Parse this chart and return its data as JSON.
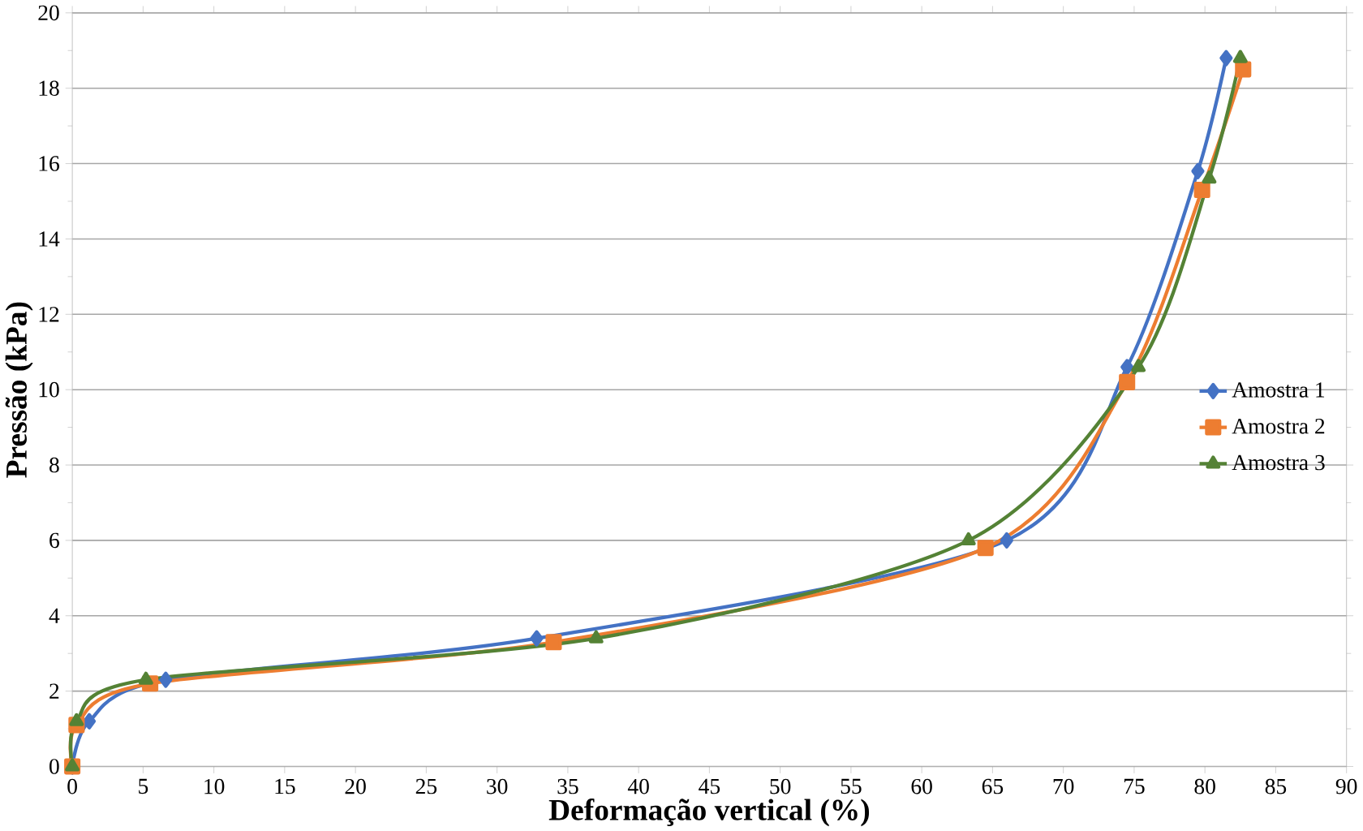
{
  "chart_data": {
    "type": "line",
    "xlabel": "Deformação vertical (%)",
    "ylabel": "Pressão (kPa)",
    "xlim": [
      0,
      90
    ],
    "ylim": [
      0,
      20
    ],
    "xticks": [
      0,
      5,
      10,
      15,
      20,
      25,
      30,
      35,
      40,
      45,
      50,
      55,
      60,
      65,
      70,
      75,
      80,
      85,
      90
    ],
    "yticks": [
      0,
      2,
      4,
      6,
      8,
      10,
      12,
      14,
      16,
      18,
      20
    ],
    "grid": "y",
    "legend": "right",
    "series": [
      {
        "name": "Amostra 1",
        "color": "#4472c4",
        "marker": "diamond",
        "x": [
          0,
          1.2,
          6.6,
          32.8,
          66,
          74.5,
          79.5,
          81.5
        ],
        "values": [
          0,
          1.2,
          2.3,
          3.4,
          6.0,
          10.6,
          15.8,
          18.8
        ]
      },
      {
        "name": "Amostra 2",
        "color": "#ed7d31",
        "marker": "square",
        "x": [
          0,
          0.3,
          5.5,
          34,
          64.5,
          74.5,
          79.8,
          82.7
        ],
        "values": [
          0,
          1.1,
          2.2,
          3.3,
          5.8,
          10.2,
          15.3,
          18.5
        ]
      },
      {
        "name": "Amostra 3",
        "color": "#548235",
        "marker": "triangle",
        "x": [
          0,
          0.3,
          5.2,
          37,
          63.3,
          75.3,
          80.3,
          82.5
        ],
        "values": [
          0,
          1.2,
          2.3,
          3.4,
          6.0,
          10.6,
          15.6,
          18.8
        ]
      }
    ]
  }
}
